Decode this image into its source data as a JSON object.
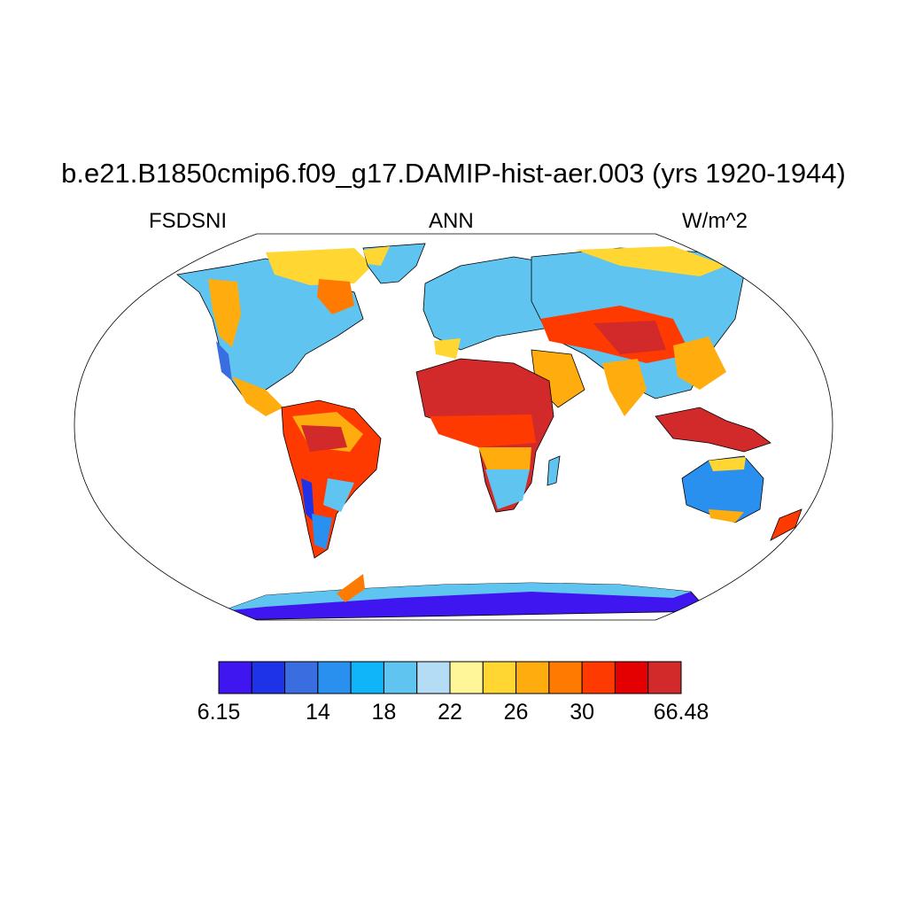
{
  "header": {
    "title": "b.e21.B1850cmip6.f09_g17.DAMIP-hist-aer.003 (yrs 1920-1944)",
    "variable": "FSDSNI",
    "season": "ANN",
    "units": "W/m^2"
  },
  "colorbar": {
    "colors": [
      "#4016f0",
      "#1e32e8",
      "#3a6ee0",
      "#2a90f0",
      "#10b4f8",
      "#60c4f0",
      "#b4dcf4",
      "#fff69a",
      "#ffd632",
      "#ffac0e",
      "#ff7a00",
      "#ff3a00",
      "#e40000",
      "#d22a2a"
    ],
    "tick_labels": [
      {
        "label": "6.15",
        "index": 0
      },
      {
        "label": "14",
        "index": 3
      },
      {
        "label": "18",
        "index": 5
      },
      {
        "label": "22",
        "index": 7
      },
      {
        "label": "26",
        "index": 9
      },
      {
        "label": "30",
        "index": 11
      },
      {
        "label": "66.48",
        "index": 14
      }
    ]
  },
  "map": {
    "projection": "robinson",
    "field_levels": {
      "north_africa": 13,
      "sahel": 10,
      "central_asia": 12,
      "arabia": 9,
      "india": 8,
      "maritime_continent": 13,
      "amazon": 10,
      "andes": 2,
      "europe": 5,
      "north_america_interior": 5,
      "eastern_north_america": 6,
      "canadian_arctic": 8,
      "hudson_bay": 10,
      "southern_africa": 5,
      "australia": 4,
      "australia_coast": 8,
      "new_zealand": 10,
      "antarctica_interior": 0,
      "antarctica_coast": 4,
      "greenland": 6
    }
  }
}
